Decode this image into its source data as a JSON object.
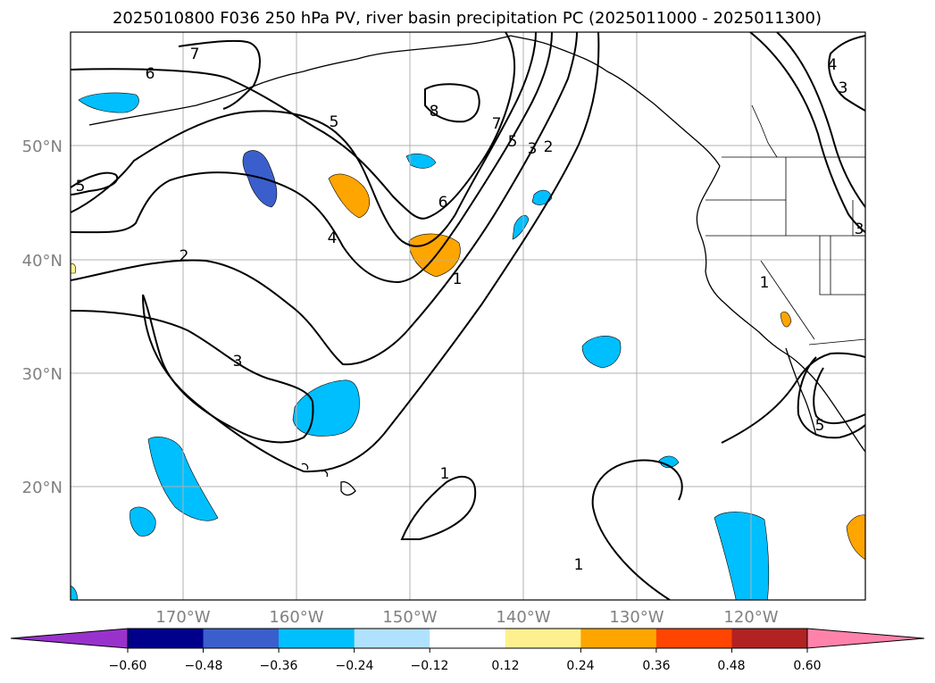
{
  "title": "2025010800 F036 250 hPa PV, river basin precipitation PC (2025011000 - 2025011300)",
  "lat_labels": [
    "50°N",
    "40°N",
    "30°N",
    "20°N"
  ],
  "lon_labels": [
    "170°W",
    "160°W",
    "150°W",
    "140°W",
    "130°W",
    "120°W"
  ],
  "colorbar": {
    "colors": [
      "#9932cc",
      "#00008b",
      "#3a5fcd",
      "#00bfff",
      "#b0e2ff",
      "#ffffff",
      "#fff08f",
      "#ffa500",
      "#ff4500",
      "#b22222",
      "#ff82ab"
    ],
    "tick_labels": [
      "−0.60",
      "−0.48",
      "−0.36",
      "−0.24",
      "−0.12",
      "0.12",
      "0.24",
      "0.36",
      "0.48",
      "0.60"
    ]
  },
  "contour_labels": [
    "6",
    "7",
    "5",
    "8",
    "7",
    "5",
    "3",
    "2",
    "6",
    "5",
    "2",
    "4",
    "1",
    "3",
    "1",
    "1",
    "4",
    "3",
    "3",
    "1",
    "5"
  ],
  "colors": {
    "contour": "#000000",
    "grid": "#b0b0b0",
    "axis_label": "#808080"
  }
}
